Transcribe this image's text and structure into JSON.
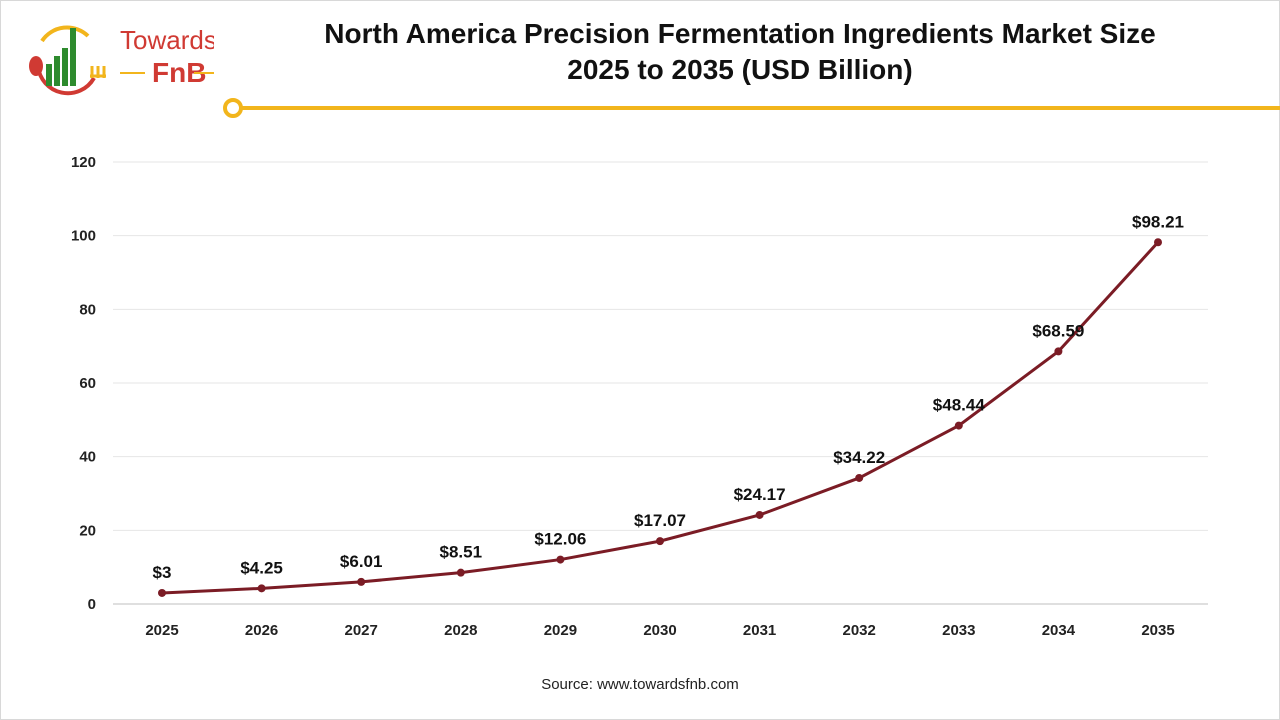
{
  "logo": {
    "text_top": "Towards",
    "text_bottom": "FnB"
  },
  "title_line1": "North America Precision Fermentation Ingredients Market Size",
  "title_line2": "2025 to 2035 (USD Billion)",
  "source": "Source: www.towardsfnb.com",
  "colors": {
    "line": "#7b1c25",
    "accent": "#f2b51c",
    "logo_red": "#d03a33",
    "logo_green": "#2e8b2e"
  },
  "chart_data": {
    "type": "line",
    "categories": [
      "2025",
      "2026",
      "2027",
      "2028",
      "2029",
      "2030",
      "2031",
      "2032",
      "2033",
      "2034",
      "2035"
    ],
    "values": [
      3,
      4.25,
      6.01,
      8.51,
      12.06,
      17.07,
      24.17,
      34.22,
      48.44,
      68.59,
      98.21
    ],
    "data_labels": [
      "$3",
      "$4.25",
      "$6.01",
      "$8.51",
      "$12.06",
      "$17.07",
      "$24.17",
      "$34.22",
      "$48.44",
      "$68.59",
      "$98.21"
    ],
    "ylim": [
      0,
      120
    ],
    "yticks": [
      "0",
      "20",
      "40",
      "60",
      "80",
      "100",
      "120"
    ],
    "grid": true
  }
}
